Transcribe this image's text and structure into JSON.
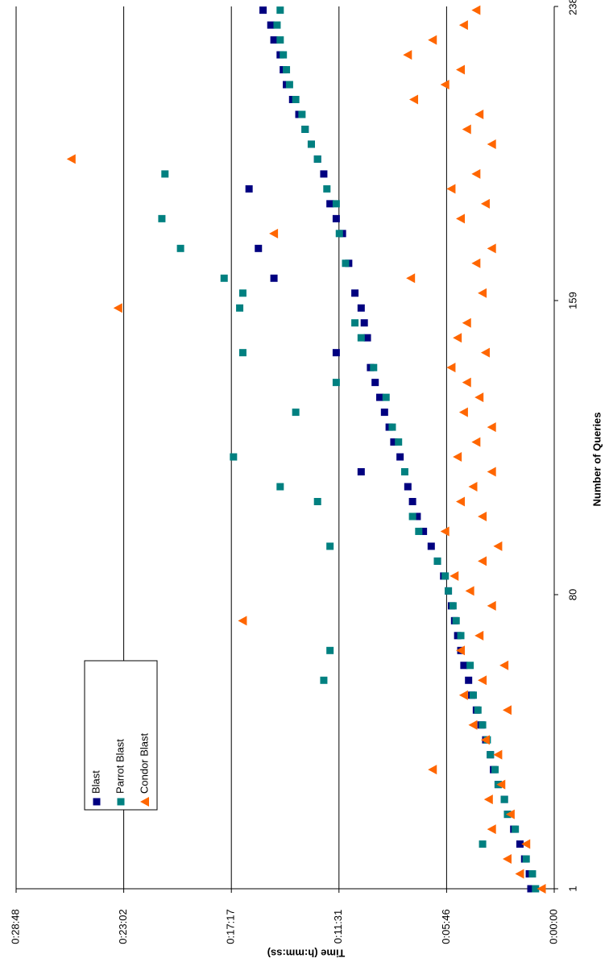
{
  "chart_data": {
    "type": "scatter",
    "x_label": "Number of Queries",
    "y_label": "Time (h:mm:ss)",
    "xlim": [
      1,
      238
    ],
    "xticks": [
      1,
      80,
      159,
      238
    ],
    "ylim": [
      0,
      1728
    ],
    "yticks": [
      {
        "value": 0,
        "label": "0:00:00"
      },
      {
        "value": 345.6,
        "label": "0:05:46"
      },
      {
        "value": 691.2,
        "label": "0:11:31"
      },
      {
        "value": 1036.8,
        "label": "0:17:17"
      },
      {
        "value": 1382.4,
        "label": "0:23:02"
      },
      {
        "value": 1728,
        "label": "0:28:48"
      }
    ],
    "grid": true,
    "legend_loc": "upper left",
    "x": [
      1,
      5,
      9,
      13,
      17,
      21,
      25,
      29,
      33,
      37,
      41,
      45,
      49,
      53,
      57,
      61,
      65,
      69,
      73,
      77,
      81,
      85,
      89,
      93,
      97,
      101,
      105,
      109,
      113,
      117,
      121,
      125,
      129,
      133,
      137,
      141,
      145,
      149,
      153,
      157,
      161,
      165,
      169,
      173,
      177,
      181,
      185,
      189,
      193,
      197,
      201,
      205,
      209,
      213,
      217,
      221,
      225,
      229,
      233,
      237
    ],
    "series": [
      {
        "name": "Blast",
        "color": "#000080",
        "marker": "square",
        "values": [
          75,
          80,
          95,
          110,
          130,
          150,
          160,
          180,
          195,
          205,
          220,
          235,
          250,
          265,
          275,
          290,
          300,
          310,
          320,
          330,
          340,
          355,
          375,
          395,
          420,
          440,
          455,
          470,
          620,
          495,
          515,
          530,
          545,
          560,
          575,
          590,
          700,
          600,
          610,
          620,
          640,
          900,
          660,
          950,
          680,
          700,
          720,
          980,
          740,
          760,
          780,
          800,
          820,
          840,
          860,
          870,
          880,
          900,
          910,
          935
        ]
      },
      {
        "name": "Parrot Blast",
        "color": "#008080",
        "marker": "square",
        "values": [
          60,
          70,
          90,
          230,
          125,
          150,
          160,
          180,
          190,
          205,
          215,
          230,
          245,
          260,
          740,
          270,
          720,
          300,
          315,
          325,
          340,
          350,
          375,
          720,
          435,
          455,
          760,
          880,
          480,
          1030,
          500,
          520,
          830,
          540,
          700,
          580,
          1000,
          620,
          640,
          1010,
          1000,
          1060,
          670,
          1200,
          690,
          1260,
          700,
          730,
          1250,
          760,
          780,
          800,
          810,
          830,
          850,
          860,
          870,
          880,
          890,
          880
        ]
      },
      {
        "name": "Condor Blast",
        "color": "#FF6600",
        "marker": "triangle",
        "values": [
          40,
          110,
          150,
          90,
          200,
          140,
          210,
          170,
          390,
          180,
          220,
          260,
          150,
          290,
          230,
          160,
          300,
          240,
          1000,
          200,
          270,
          320,
          230,
          180,
          350,
          230,
          300,
          260,
          200,
          310,
          250,
          200,
          290,
          240,
          280,
          330,
          220,
          310,
          280,
          1400,
          230,
          460,
          250,
          200,
          900,
          300,
          220,
          330,
          250,
          1550,
          200,
          280,
          240,
          450,
          350,
          300,
          470,
          390,
          290,
          250
        ]
      }
    ]
  }
}
